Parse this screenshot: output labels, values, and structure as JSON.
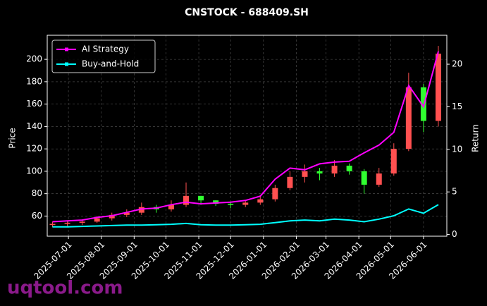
{
  "chart_data": {
    "type": "candlestick",
    "title": "CNSTOCK - 688409.SH",
    "ylabel": "Price",
    "y2label": "Return",
    "watermark": "uqtool.com",
    "x": [
      "2025-06-16",
      "2025-06-30",
      "2025-07-14",
      "2025-07-28",
      "2025-08-11",
      "2025-08-25",
      "2025-09-08",
      "2025-09-22",
      "2025-10-06",
      "2025-10-20",
      "2025-11-03",
      "2025-11-17",
      "2025-12-01",
      "2025-12-15",
      "2025-12-29",
      "2026-01-12",
      "2026-01-26",
      "2026-02-09",
      "2026-02-23",
      "2026-03-09",
      "2026-03-23",
      "2026-04-06",
      "2026-04-20",
      "2026-05-04",
      "2026-05-18",
      "2026-06-01",
      "2026-06-15"
    ],
    "open": [
      52,
      53,
      54,
      55,
      58,
      61,
      63,
      68,
      66,
      70,
      78,
      74,
      71,
      70,
      72,
      75,
      85,
      95,
      100,
      98,
      105,
      100,
      88,
      98,
      120,
      175,
      145
    ],
    "high": [
      55,
      56,
      57,
      60,
      63,
      66,
      72,
      70,
      74,
      90,
      78,
      74,
      73,
      74,
      78,
      88,
      100,
      106,
      103,
      110,
      107,
      102,
      103,
      125,
      188,
      178,
      212
    ],
    "low": [
      50,
      51,
      52,
      54,
      56,
      59,
      61,
      63,
      64,
      68,
      70,
      69,
      67,
      68,
      70,
      73,
      83,
      90,
      92,
      95,
      97,
      80,
      86,
      96,
      118,
      135,
      140
    ],
    "close": [
      53,
      54,
      55,
      58,
      61,
      63,
      68,
      66,
      70,
      78,
      74,
      71,
      70,
      72,
      75,
      85,
      95,
      100,
      98,
      105,
      100,
      88,
      98,
      120,
      175,
      145,
      205
    ],
    "up_color": "#ff5050",
    "down_color": "#30ff30",
    "series": [
      {
        "name": "AI Strategy",
        "color": "#ff00ff",
        "axis": "y2",
        "values": [
          1.5,
          1.6,
          1.7,
          2,
          2.2,
          2.6,
          3.0,
          3.1,
          3.5,
          3.8,
          3.6,
          3.7,
          3.8,
          4.0,
          4.5,
          6.5,
          7.8,
          7.6,
          8.3,
          8.5,
          8.6,
          9.6,
          10.5,
          12.0,
          17.5,
          15.0,
          21.5
        ]
      },
      {
        "name": "Buy-and-Hold",
        "color": "#00ffff",
        "axis": "y2",
        "values": [
          0.9,
          0.9,
          0.95,
          1.0,
          1.05,
          1.1,
          1.1,
          1.15,
          1.2,
          1.3,
          1.15,
          1.1,
          1.1,
          1.15,
          1.2,
          1.4,
          1.6,
          1.7,
          1.6,
          1.8,
          1.7,
          1.5,
          1.8,
          2.2,
          3.0,
          2.5,
          3.5
        ]
      }
    ],
    "xlim": [
      "2025-06-11",
      "2026-06-23"
    ],
    "xticks": [
      "2025-07-01",
      "2025-08-01",
      "2025-09-01",
      "2025-10-01",
      "2025-11-01",
      "2025-12-01",
      "2026-01-01",
      "2026-02-01",
      "2026-03-01",
      "2026-04-01",
      "2026-05-01",
      "2026-06-01"
    ],
    "ylim": [
      42,
      221.5
    ],
    "yticks": [
      60,
      80,
      100,
      120,
      140,
      160,
      180,
      200
    ],
    "y2lim": [
      -0.2,
      23.4
    ],
    "y2ticks": [
      0,
      5,
      10,
      15,
      20
    ],
    "grid": true,
    "legend": "upper left"
  }
}
